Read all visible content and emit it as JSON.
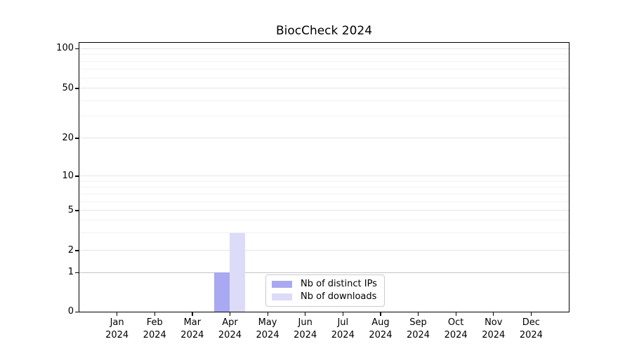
{
  "chart_data": {
    "type": "bar",
    "title": "BiocCheck 2024",
    "categories": [
      [
        "Jan",
        "2024"
      ],
      [
        "Feb",
        "2024"
      ],
      [
        "Mar",
        "2024"
      ],
      [
        "Apr",
        "2024"
      ],
      [
        "May",
        "2024"
      ],
      [
        "Jun",
        "2024"
      ],
      [
        "Jul",
        "2024"
      ],
      [
        "Aug",
        "2024"
      ],
      [
        "Sep",
        "2024"
      ],
      [
        "Oct",
        "2024"
      ],
      [
        "Nov",
        "2024"
      ],
      [
        "Dec",
        "2024"
      ]
    ],
    "series": [
      {
        "name": "Nb of distinct IPs",
        "color": "#a9a9f1",
        "values": [
          0,
          0,
          0,
          1,
          0,
          0,
          0,
          0,
          0,
          0,
          0,
          0
        ]
      },
      {
        "name": "Nb of downloads",
        "color": "#dcdcf8",
        "values": [
          0,
          0,
          0,
          3,
          0,
          0,
          0,
          0,
          0,
          0,
          0,
          0
        ]
      }
    ],
    "y_axis": {
      "scale": "symlog",
      "ticks": [
        0,
        1,
        2,
        5,
        10,
        20,
        50,
        100
      ],
      "minor_ticks": [
        3,
        4,
        6,
        7,
        8,
        9,
        30,
        40,
        60,
        70,
        80,
        90
      ],
      "ylim": [
        0,
        110
      ]
    },
    "xlabel": "",
    "ylabel": "",
    "grid": "horizontal",
    "legend_position": "inside-bottom-center"
  },
  "colors": {
    "grid_major": "#e4e4e4",
    "grid_minor": "#f2f2f2",
    "grid_unit_line": "#c4c4c4",
    "axis": "#000000"
  }
}
